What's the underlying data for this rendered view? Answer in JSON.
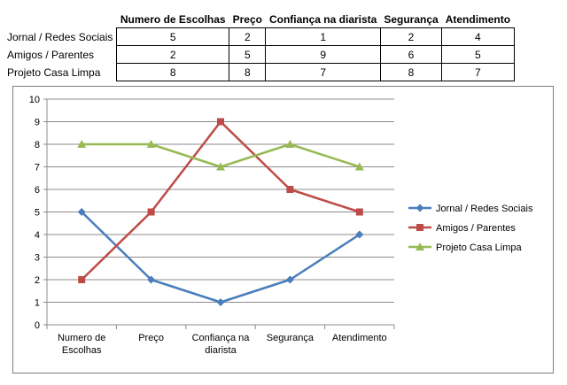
{
  "table": {
    "columns": [
      "Numero de Escolhas",
      "Preço",
      "Confiança na diarista",
      "Segurança",
      "Atendimento"
    ],
    "rows": [
      {
        "label": "Jornal / Redes Sociais",
        "values": [
          "5",
          "2",
          "1",
          "2",
          "4"
        ]
      },
      {
        "label": "Amigos / Parentes",
        "values": [
          "2",
          "5",
          "9",
          "6",
          "5"
        ]
      },
      {
        "label": "Projeto Casa Limpa",
        "values": [
          "8",
          "8",
          "7",
          "8",
          "7"
        ]
      }
    ]
  },
  "chart_data": {
    "type": "line",
    "categories": [
      [
        "Numero de",
        "Escolhas"
      ],
      [
        "Preço"
      ],
      [
        "Confiança na",
        "diarista"
      ],
      [
        "Segurança"
      ],
      [
        "Atendimento"
      ]
    ],
    "series": [
      {
        "name": "Jornal / Redes Sociais",
        "values": [
          5,
          2,
          1,
          2,
          4
        ],
        "color": "#4a7ebb",
        "marker": "diamond"
      },
      {
        "name": "Amigos / Parentes",
        "values": [
          2,
          5,
          9,
          6,
          5
        ],
        "color": "#be4b48",
        "marker": "square"
      },
      {
        "name": "Projeto Casa Limpa",
        "values": [
          8,
          8,
          7,
          8,
          7
        ],
        "color": "#98b954",
        "marker": "triangle"
      }
    ],
    "yticks": [
      "0",
      "1",
      "2",
      "3",
      "4",
      "5",
      "6",
      "7",
      "8",
      "9",
      "10"
    ],
    "ylim": [
      0,
      10
    ],
    "grid": true,
    "legend": "right"
  }
}
